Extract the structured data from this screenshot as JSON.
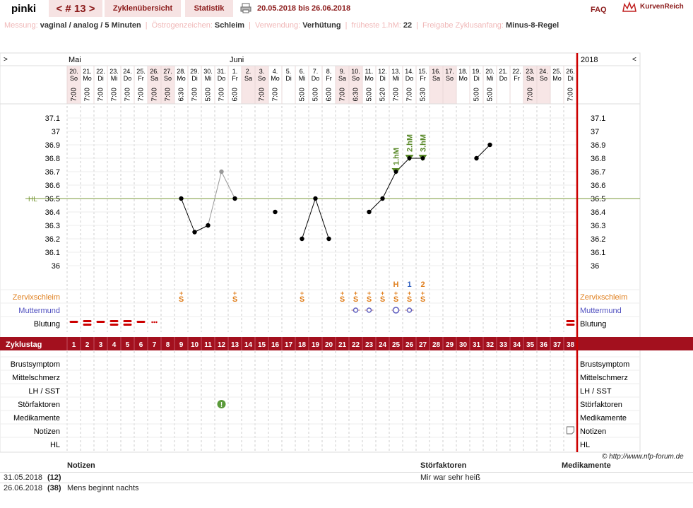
{
  "header": {
    "user": "pinki",
    "cycle_label": "< # 13 >",
    "tabs": [
      "Zyklenübersicht",
      "Statistik"
    ],
    "date_range": "20.05.2018 bis 26.06.2018",
    "faq": "FAQ",
    "brand": "KurvenReich"
  },
  "info": {
    "messung_label": "Messung:",
    "messung": "vaginal / analog / 5 Minuten",
    "oestro_label": "Östrogenzeichen:",
    "oestro": "Schleim",
    "verw_label": "Verwendung:",
    "verw": "Verhütung",
    "hm_label": "früheste 1.hM:",
    "hm": "22",
    "frei_label": "Freigabe Zyklusanfang:",
    "frei": "Minus-8-Regel"
  },
  "chart_data": {
    "type": "line",
    "months": [
      {
        "label": "Mai",
        "day": 1
      },
      {
        "label": "Juni",
        "day": 13
      }
    ],
    "year": "2018",
    "dates": [
      "20.",
      "21.",
      "22.",
      "23.",
      "24.",
      "25.",
      "26.",
      "27.",
      "28.",
      "29.",
      "30.",
      "31.",
      "1.",
      "2.",
      "3.",
      "4.",
      "5.",
      "6.",
      "7.",
      "8.",
      "9.",
      "10.",
      "11.",
      "12.",
      "13.",
      "14.",
      "15.",
      "16.",
      "17.",
      "18.",
      "19.",
      "20.",
      "21.",
      "22.",
      "23.",
      "24.",
      "25.",
      "26."
    ],
    "weekdays": [
      "So",
      "Mo",
      "Di",
      "Mi",
      "Do",
      "Fr",
      "Sa",
      "So",
      "Mo",
      "Di",
      "Mi",
      "Do",
      "Fr",
      "Sa",
      "So",
      "Mo",
      "Di",
      "Mi",
      "Do",
      "Fr",
      "Sa",
      "So",
      "Mo",
      "Di",
      "Mi",
      "Do",
      "Fr",
      "Sa",
      "So",
      "Mo",
      "Di",
      "Mi",
      "Do",
      "Fr",
      "Sa",
      "So",
      "Mo",
      "Di"
    ],
    "times": [
      "7:00",
      "7:00",
      "7:00",
      "7:00",
      "7:00",
      "7:00",
      "7:00",
      "7:00",
      "6:30",
      "7:00",
      "5:00",
      "7:00",
      "6:00",
      "",
      "7:00",
      "7:00",
      "",
      "5:00",
      "5:00",
      "6:00",
      "7:00",
      "6:30",
      "5:00",
      "5:20",
      "7:00",
      "7:00",
      "5:30",
      "",
      "",
      "",
      "5:00",
      "5:00",
      "",
      "",
      "7:00",
      "",
      "",
      "7:00"
    ],
    "weekend": [
      1,
      0,
      0,
      0,
      0,
      0,
      1,
      1,
      0,
      0,
      0,
      0,
      0,
      1,
      1,
      0,
      0,
      0,
      0,
      0,
      1,
      1,
      0,
      0,
      0,
      0,
      0,
      1,
      1,
      0,
      0,
      0,
      0,
      0,
      1,
      1,
      0,
      0
    ],
    "y_ticks": [
      "37.1",
      "37",
      "36.9",
      "36.8",
      "36.7",
      "36.6",
      "36.5",
      "36.4",
      "36.3",
      "36.2",
      "36.1",
      "36"
    ],
    "ylim": [
      36.0,
      37.1
    ],
    "hl_label": "HL",
    "hl_value": 36.5,
    "temps": [
      null,
      null,
      null,
      null,
      null,
      null,
      null,
      null,
      36.5,
      36.25,
      36.3,
      36.7,
      36.5,
      null,
      null,
      36.4,
      null,
      36.2,
      36.5,
      36.2,
      null,
      null,
      36.4,
      36.5,
      36.7,
      36.8,
      36.8,
      null,
      null,
      null,
      36.8,
      36.9,
      null,
      null,
      null,
      null,
      null,
      null
    ],
    "excluded_day": 12,
    "hm_labels": [
      {
        "day": 25,
        "label": "1.hM"
      },
      {
        "day": 26,
        "label": "2.hM"
      },
      {
        "day": 27,
        "label": "3.hM"
      }
    ],
    "peak_labels": [
      {
        "day": 25,
        "label": "H",
        "color": "#e08020"
      },
      {
        "day": 26,
        "label": "1",
        "color": "#3060c0"
      },
      {
        "day": 27,
        "label": "2",
        "color": "#e08020"
      }
    ],
    "schleim_days": [
      9,
      13,
      18,
      21,
      22,
      23,
      24,
      25,
      26,
      27
    ],
    "schleim_label": "Zervixschleim",
    "mm_days": [
      22,
      23,
      25,
      26
    ],
    "mm_label": "Muttermund",
    "blut_days": [
      {
        "d": 1,
        "t": "h"
      },
      {
        "d": 2,
        "t": "m"
      },
      {
        "d": 3,
        "t": "h"
      },
      {
        "d": 4,
        "t": "m"
      },
      {
        "d": 5,
        "t": "m"
      },
      {
        "d": 6,
        "t": "h"
      },
      {
        "d": 7,
        "t": "s"
      },
      {
        "d": 38,
        "t": "m"
      }
    ],
    "blut_label": "Blutung",
    "zyklustag_label": "Zyklustag",
    "days": [
      "1",
      "2",
      "3",
      "4",
      "5",
      "6",
      "7",
      "8",
      "9",
      "10",
      "11",
      "12",
      "13",
      "14",
      "15",
      "16",
      "17",
      "18",
      "19",
      "20",
      "21",
      "22",
      "23",
      "24",
      "25",
      "26",
      "27",
      "28",
      "29",
      "30",
      "31",
      "32",
      "33",
      "34",
      "35",
      "36",
      "37",
      "38"
    ],
    "lower_rows": [
      "Brustsymptom",
      "Mittelschmerz",
      "LH / SST",
      "Störfaktoren",
      "Medikamente",
      "Notizen",
      "HL"
    ],
    "stoer_day": 12,
    "notiz_day": 38
  },
  "copyright": "© http://www.nfp-forum.de",
  "notes": {
    "hdr_notizen": "Notizen",
    "hdr_stoer": "Störfaktoren",
    "hdr_medi": "Medikamente",
    "rows": [
      {
        "date": "31.05.2018",
        "day": "(12)",
        "note": "",
        "stoer": "Mir war sehr heiß"
      },
      {
        "date": "26.06.2018",
        "day": "(38)",
        "note": "Mens beginnt nachts",
        "stoer": ""
      }
    ]
  }
}
